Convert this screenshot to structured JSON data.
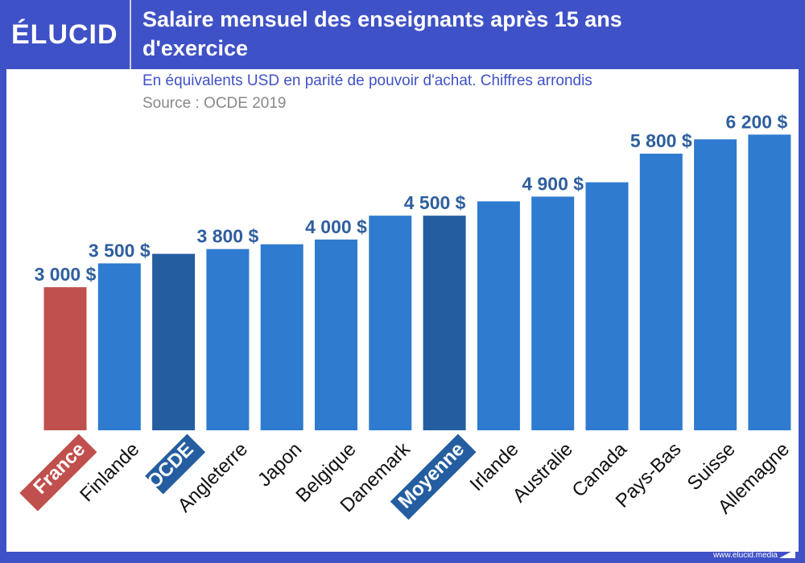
{
  "brand": {
    "logo": "ÉLUCID",
    "footer": "www.elucid.media"
  },
  "chart_data": {
    "type": "bar",
    "title": "Salaire mensuel des enseignants après 15 ans d'exercice",
    "subtitle": "En équivalents USD en parité de pouvoir d'achat. Chiffres arrondis",
    "source": "Source : OCDE 2019",
    "categories": [
      "France",
      "Finlande",
      "OCDE",
      "Angleterre",
      "Japon",
      "Belgique",
      "Danemark",
      "Moyenne",
      "Irlande",
      "Australie",
      "Canada",
      "Pays-Bas",
      "Suisse",
      "Allemagne"
    ],
    "values": [
      3000,
      3500,
      3700,
      3800,
      3900,
      4000,
      4500,
      4500,
      4800,
      4900,
      5200,
      5800,
      6100,
      6200
    ],
    "data_labels": [
      "3 000 $",
      "3 500 $",
      null,
      "3 800 $",
      null,
      "4 000 $",
      null,
      "4 500 $",
      null,
      "4 900 $",
      null,
      "5 800 $",
      null,
      "6 200 $"
    ],
    "highlight": {
      "France": "#c0504d",
      "OCDE": "#245ea0",
      "Moyenne": "#245ea0"
    },
    "bar_color": "#2e7bd0",
    "label_color": "#2f5f9e",
    "ylim": [
      0,
      6300
    ],
    "grid": false
  }
}
